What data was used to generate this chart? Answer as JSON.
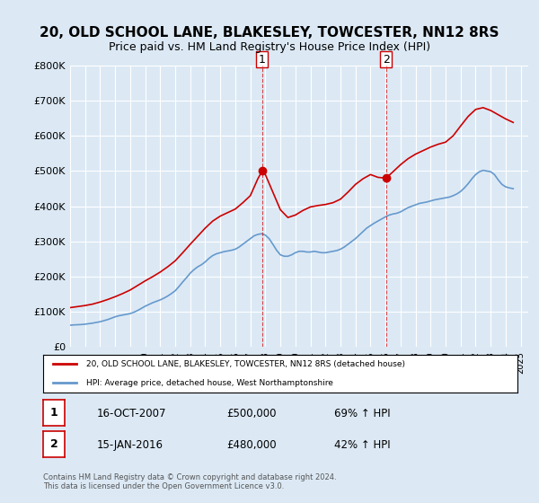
{
  "title": "20, OLD SCHOOL LANE, BLAKESLEY, TOWCESTER, NN12 8RS",
  "subtitle": "Price paid vs. HM Land Registry's House Price Index (HPI)",
  "title_fontsize": 11,
  "subtitle_fontsize": 9,
  "ylim": [
    0,
    800000
  ],
  "yticks": [
    0,
    100000,
    200000,
    300000,
    400000,
    500000,
    600000,
    700000,
    800000
  ],
  "ytick_labels": [
    "£0",
    "£100K",
    "£200K",
    "£300K",
    "£400K",
    "£500K",
    "£600K",
    "£700K",
    "£800K"
  ],
  "xlim_start": 1995.0,
  "xlim_end": 2025.5,
  "red_line_color": "#cc0000",
  "blue_line_color": "#6699cc",
  "sale1_x": 2007.79,
  "sale1_y": 500000,
  "sale1_label": "1",
  "sale2_x": 2016.04,
  "sale2_y": 480000,
  "sale2_label": "2",
  "legend_red": "20, OLD SCHOOL LANE, BLAKESLEY, TOWCESTER, NN12 8RS (detached house)",
  "legend_blue": "HPI: Average price, detached house, West Northamptonshire",
  "table_row1": [
    "1",
    "16-OCT-2007",
    "£500,000",
    "69% ↑ HPI"
  ],
  "table_row2": [
    "2",
    "15-JAN-2016",
    "£480,000",
    "42% ↑ HPI"
  ],
  "footnote": "Contains HM Land Registry data © Crown copyright and database right 2024.\nThis data is licensed under the Open Government Licence v3.0.",
  "bg_color": "#dce9f5",
  "plot_bg": "#ffffff",
  "hpi_years": [
    1995.0,
    1995.25,
    1995.5,
    1995.75,
    1996.0,
    1996.25,
    1996.5,
    1996.75,
    1997.0,
    1997.25,
    1997.5,
    1997.75,
    1998.0,
    1998.25,
    1998.5,
    1998.75,
    1999.0,
    1999.25,
    1999.5,
    1999.75,
    2000.0,
    2000.25,
    2000.5,
    2000.75,
    2001.0,
    2001.25,
    2001.5,
    2001.75,
    2002.0,
    2002.25,
    2002.5,
    2002.75,
    2003.0,
    2003.25,
    2003.5,
    2003.75,
    2004.0,
    2004.25,
    2004.5,
    2004.75,
    2005.0,
    2005.25,
    2005.5,
    2005.75,
    2006.0,
    2006.25,
    2006.5,
    2006.75,
    2007.0,
    2007.25,
    2007.5,
    2007.75,
    2008.0,
    2008.25,
    2008.5,
    2008.75,
    2009.0,
    2009.25,
    2009.5,
    2009.75,
    2010.0,
    2010.25,
    2010.5,
    2010.75,
    2011.0,
    2011.25,
    2011.5,
    2011.75,
    2012.0,
    2012.25,
    2012.5,
    2012.75,
    2013.0,
    2013.25,
    2013.5,
    2013.75,
    2014.0,
    2014.25,
    2014.5,
    2014.75,
    2015.0,
    2015.25,
    2015.5,
    2015.75,
    2016.0,
    2016.25,
    2016.5,
    2016.75,
    2017.0,
    2017.25,
    2017.5,
    2017.75,
    2018.0,
    2018.25,
    2018.5,
    2018.75,
    2019.0,
    2019.25,
    2019.5,
    2019.75,
    2020.0,
    2020.25,
    2020.5,
    2020.75,
    2021.0,
    2021.25,
    2021.5,
    2021.75,
    2022.0,
    2022.25,
    2022.5,
    2022.75,
    2023.0,
    2023.25,
    2023.5,
    2023.75,
    2024.0,
    2024.25,
    2024.5
  ],
  "hpi_values": [
    62000,
    63000,
    63500,
    64000,
    65000,
    66500,
    68000,
    70000,
    72000,
    75000,
    78000,
    82000,
    86000,
    89000,
    91000,
    93000,
    95000,
    99000,
    104000,
    110000,
    116000,
    121000,
    126000,
    130000,
    134000,
    139000,
    145000,
    152000,
    160000,
    172000,
    185000,
    197000,
    210000,
    220000,
    228000,
    234000,
    242000,
    252000,
    260000,
    265000,
    268000,
    271000,
    273000,
    275000,
    278000,
    284000,
    292000,
    300000,
    308000,
    316000,
    320000,
    322000,
    318000,
    308000,
    292000,
    275000,
    262000,
    258000,
    258000,
    262000,
    268000,
    272000,
    272000,
    270000,
    270000,
    272000,
    270000,
    268000,
    268000,
    270000,
    272000,
    274000,
    278000,
    284000,
    292000,
    300000,
    308000,
    318000,
    328000,
    338000,
    345000,
    352000,
    358000,
    364000,
    370000,
    375000,
    378000,
    380000,
    384000,
    390000,
    396000,
    400000,
    404000,
    408000,
    410000,
    412000,
    415000,
    418000,
    420000,
    422000,
    424000,
    426000,
    430000,
    435000,
    442000,
    452000,
    464000,
    478000,
    490000,
    498000,
    502000,
    500000,
    498000,
    490000,
    475000,
    462000,
    455000,
    452000,
    450000
  ],
  "red_years": [
    1995.0,
    1995.5,
    1996.0,
    1996.5,
    1997.0,
    1997.5,
    1998.0,
    1998.5,
    1999.0,
    1999.5,
    2000.0,
    2000.5,
    2001.0,
    2001.5,
    2002.0,
    2002.5,
    2003.0,
    2003.5,
    2004.0,
    2004.5,
    2005.0,
    2005.5,
    2006.0,
    2006.5,
    2007.0,
    2007.5,
    2007.79,
    2008.0,
    2008.5,
    2009.0,
    2009.5,
    2010.0,
    2010.5,
    2011.0,
    2011.5,
    2012.0,
    2012.5,
    2013.0,
    2013.5,
    2014.0,
    2014.5,
    2015.0,
    2015.5,
    2016.04,
    2016.5,
    2017.0,
    2017.5,
    2018.0,
    2018.5,
    2019.0,
    2019.5,
    2020.0,
    2020.5,
    2021.0,
    2021.5,
    2022.0,
    2022.5,
    2023.0,
    2023.5,
    2024.0,
    2024.5
  ],
  "red_values": [
    112000,
    115000,
    118000,
    122000,
    128000,
    135000,
    143000,
    152000,
    162000,
    175000,
    188000,
    200000,
    213000,
    228000,
    245000,
    268000,
    292000,
    315000,
    338000,
    358000,
    372000,
    382000,
    392000,
    410000,
    430000,
    478000,
    500000,
    490000,
    440000,
    390000,
    368000,
    375000,
    388000,
    398000,
    402000,
    405000,
    410000,
    420000,
    440000,
    462000,
    478000,
    490000,
    482000,
    480000,
    498000,
    518000,
    535000,
    548000,
    558000,
    568000,
    576000,
    582000,
    600000,
    628000,
    655000,
    675000,
    680000,
    672000,
    660000,
    648000,
    638000
  ]
}
